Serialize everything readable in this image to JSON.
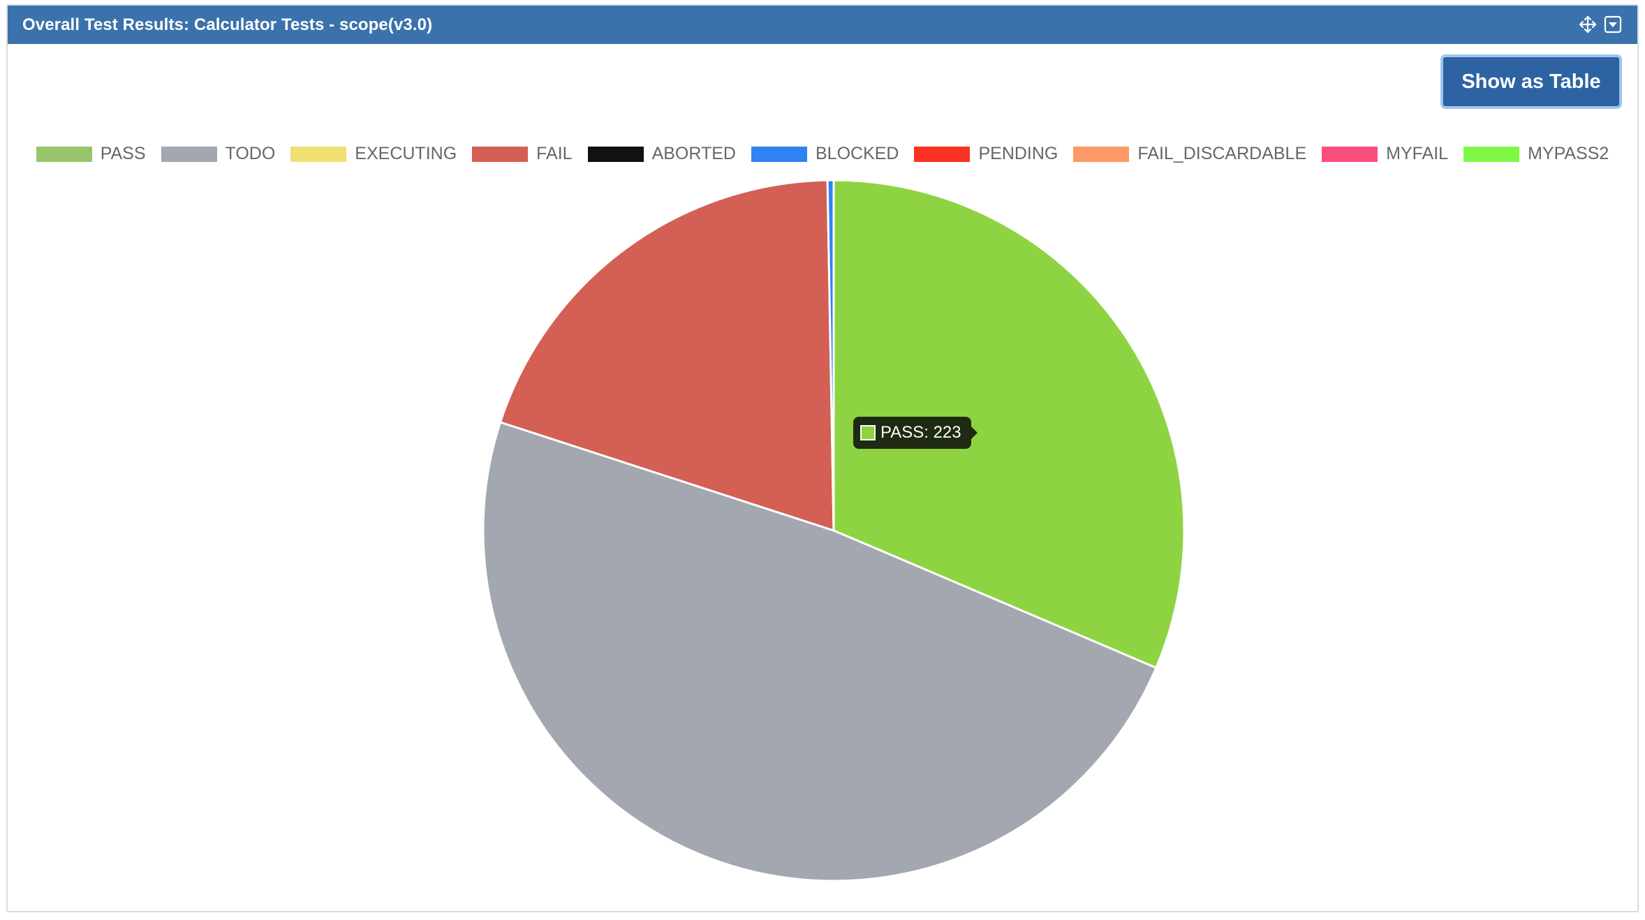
{
  "panel": {
    "title": "Overall Test Results: Calculator Tests - scope(v3.0)",
    "header_icons": [
      "move-icon",
      "dropdown-icon"
    ]
  },
  "toolbar": {
    "show_table_label": "Show as Table"
  },
  "tooltip": {
    "label": "PASS: 223",
    "color": "#8ed442"
  },
  "chart_data": {
    "type": "pie",
    "legend_position": "top",
    "legend": [
      {
        "name": "PASS",
        "color": "#98c46a"
      },
      {
        "name": "TODO",
        "color": "#a3a7af"
      },
      {
        "name": "EXECUTING",
        "color": "#f1df72"
      },
      {
        "name": "FAIL",
        "color": "#d35f55"
      },
      {
        "name": "ABORTED",
        "color": "#111111"
      },
      {
        "name": "BLOCKED",
        "color": "#2f83f3"
      },
      {
        "name": "PENDING",
        "color": "#fb3123"
      },
      {
        "name": "FAIL_DISCARDABLE",
        "color": "#fd9a66"
      },
      {
        "name": "MYFAIL",
        "color": "#fb4e7d"
      },
      {
        "name": "MYPASS2",
        "color": "#7ef845"
      }
    ],
    "slices": [
      {
        "name": "PASS",
        "value": 223,
        "color": "#8ed442"
      },
      {
        "name": "TODO",
        "value": 345,
        "color": "#a3a7af"
      },
      {
        "name": "FAIL",
        "value": 140,
        "color": "#d35f55"
      },
      {
        "name": "ABORTED",
        "value": 0,
        "color": "#111111"
      },
      {
        "name": "BLOCKED",
        "value": 2,
        "color": "#2f83f3"
      }
    ]
  }
}
